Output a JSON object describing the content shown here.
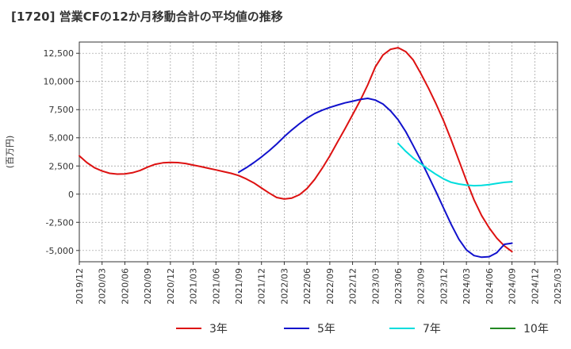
{
  "title": "[1720]  営業CFの12か月移動合計の平均値の推移",
  "chart_data": {
    "type": "line",
    "ylabel": "(百万円)",
    "ylim": [
      -6000,
      13500
    ],
    "yticks": [
      12500,
      10000,
      7500,
      5000,
      2500,
      0,
      -2500,
      -5000
    ],
    "ytick_labels": [
      "12,500",
      "10,000",
      "7,500",
      "5,000",
      "2,500",
      "0",
      "-2,500",
      "-5,000"
    ],
    "xticks": [
      "2019/12",
      "2020/03",
      "2020/06",
      "2020/09",
      "2020/12",
      "2021/03",
      "2021/06",
      "2021/09",
      "2021/12",
      "2022/03",
      "2022/06",
      "2022/09",
      "2022/12",
      "2023/03",
      "2023/06",
      "2023/09",
      "2023/12",
      "2024/03",
      "2024/06",
      "2024/09",
      "2024/12",
      "2025/03"
    ],
    "grid": true,
    "legend_position": "bottom",
    "series": [
      {
        "name": "3年",
        "color": "#dd1111",
        "x": [
          "2019/12",
          "2020/01",
          "2020/02",
          "2020/03",
          "2020/04",
          "2020/05",
          "2020/06",
          "2020/07",
          "2020/08",
          "2020/09",
          "2020/10",
          "2020/11",
          "2020/12",
          "2021/01",
          "2021/02",
          "2021/03",
          "2021/04",
          "2021/05",
          "2021/06",
          "2021/07",
          "2021/08",
          "2021/09",
          "2021/10",
          "2021/11",
          "2021/12",
          "2022/01",
          "2022/02",
          "2022/03",
          "2022/04",
          "2022/05",
          "2022/06",
          "2022/07",
          "2022/08",
          "2022/09",
          "2022/10",
          "2022/11",
          "2022/12",
          "2023/01",
          "2023/02",
          "2023/03",
          "2023/04",
          "2023/05",
          "2023/06",
          "2023/07",
          "2023/08",
          "2023/09",
          "2023/10",
          "2023/11",
          "2023/12",
          "2024/01",
          "2024/02",
          "2024/03",
          "2024/04",
          "2024/05",
          "2024/06",
          "2024/07",
          "2024/08",
          "2024/09"
        ],
        "values": [
          3400,
          2800,
          2350,
          2050,
          1850,
          1780,
          1800,
          1900,
          2100,
          2400,
          2650,
          2780,
          2820,
          2800,
          2720,
          2580,
          2450,
          2300,
          2150,
          2000,
          1850,
          1650,
          1350,
          1000,
          550,
          100,
          -300,
          -430,
          -350,
          -50,
          500,
          1300,
          2300,
          3400,
          4600,
          5800,
          7050,
          8300,
          9700,
          11300,
          12350,
          12850,
          13000,
          12650,
          11900,
          10700,
          9400,
          8000,
          6500,
          4800,
          3000,
          1200,
          -500,
          -1900,
          -3000,
          -3900,
          -4600,
          -5100
        ]
      },
      {
        "name": "5年",
        "color": "#1111cc",
        "x": [
          "2021/09",
          "2021/10",
          "2021/11",
          "2021/12",
          "2022/01",
          "2022/02",
          "2022/03",
          "2022/04",
          "2022/05",
          "2022/06",
          "2022/07",
          "2022/08",
          "2022/09",
          "2022/10",
          "2022/11",
          "2022/12",
          "2023/01",
          "2023/02",
          "2023/03",
          "2023/04",
          "2023/05",
          "2023/06",
          "2023/07",
          "2023/08",
          "2023/09",
          "2023/10",
          "2023/11",
          "2023/12",
          "2024/01",
          "2024/02",
          "2024/03",
          "2024/04",
          "2024/05",
          "2024/06",
          "2024/07",
          "2024/08",
          "2024/09"
        ],
        "values": [
          1950,
          2350,
          2800,
          3300,
          3850,
          4450,
          5100,
          5700,
          6250,
          6750,
          7150,
          7450,
          7700,
          7900,
          8100,
          8250,
          8400,
          8500,
          8350,
          8000,
          7400,
          6600,
          5550,
          4300,
          3000,
          1600,
          200,
          -1250,
          -2700,
          -4000,
          -4950,
          -5450,
          -5600,
          -5550,
          -5200,
          -4450,
          -4350
        ]
      },
      {
        "name": "7年",
        "color": "#00dddd",
        "x": [
          "2023/06",
          "2023/07",
          "2023/08",
          "2023/09",
          "2023/10",
          "2023/11",
          "2023/12",
          "2024/01",
          "2024/02",
          "2024/03",
          "2024/04",
          "2024/05",
          "2024/06",
          "2024/07",
          "2024/08",
          "2024/09"
        ],
        "values": [
          4500,
          3800,
          3200,
          2700,
          2200,
          1750,
          1350,
          1050,
          900,
          800,
          750,
          780,
          850,
          950,
          1050,
          1100
        ]
      },
      {
        "name": "10年",
        "color": "#228822",
        "x": [],
        "values": []
      }
    ]
  }
}
